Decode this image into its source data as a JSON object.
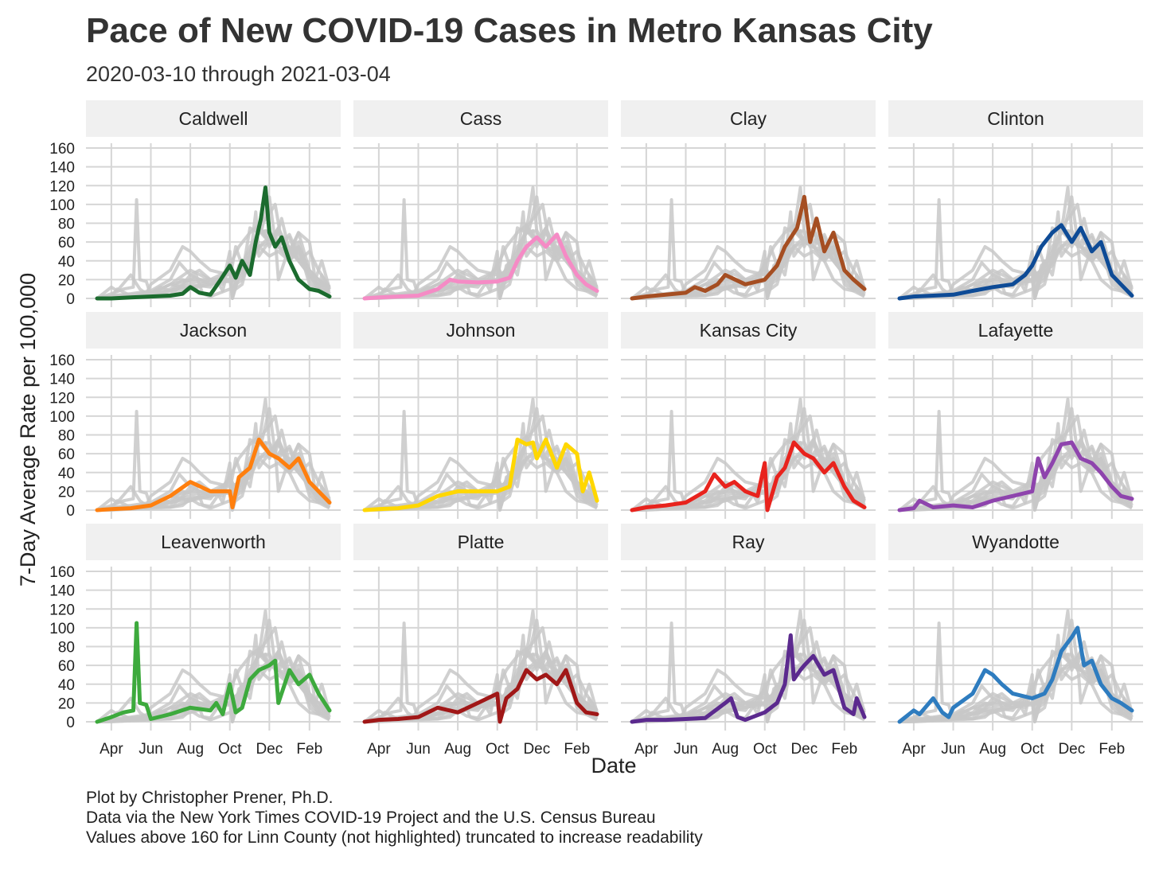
{
  "title": "Pace of New COVID-19 Cases in Metro Kansas City",
  "subtitle": "2020-03-10 through 2021-03-04",
  "caption": [
    "Plot by Christopher Prener, Ph.D.",
    "Data via the New York Times COVID-19 Project and the U.S. Census Bureau",
    "Values above 160 for Linn County (not highlighted) truncated to increase readability"
  ],
  "chart_data": {
    "type": "line",
    "xlabel": "Date",
    "ylabel": "7-Day Average Rate per 100,000",
    "xlim": [
      "2020-03-10",
      "2021-03-04"
    ],
    "ylim": [
      0,
      160
    ],
    "y_ticks": [
      0,
      20,
      40,
      60,
      80,
      100,
      120,
      140,
      160
    ],
    "x_ticks": [
      {
        "date": "2020-04-01",
        "label": "Apr"
      },
      {
        "date": "2020-06-01",
        "label": "Jun"
      },
      {
        "date": "2020-08-01",
        "label": "Aug"
      },
      {
        "date": "2020-10-01",
        "label": "Oct"
      },
      {
        "date": "2020-12-01",
        "label": "Dec"
      },
      {
        "date": "2021-02-01",
        "label": "Feb"
      }
    ],
    "grid": true,
    "background_series_color": "#c8c8c8",
    "panels": [
      {
        "name": "Caldwell",
        "color": "#1b6b2e",
        "x": [
          "2020-03-10",
          "2020-04-01",
          "2020-05-01",
          "2020-06-01",
          "2020-07-01",
          "2020-07-20",
          "2020-08-01",
          "2020-08-15",
          "2020-09-01",
          "2020-09-15",
          "2020-10-01",
          "2020-10-10",
          "2020-10-20",
          "2020-11-01",
          "2020-11-10",
          "2020-11-18",
          "2020-11-25",
          "2020-12-01",
          "2020-12-10",
          "2020-12-20",
          "2021-01-01",
          "2021-01-15",
          "2021-02-01",
          "2021-02-15",
          "2021-03-04"
        ],
        "values": [
          0,
          0,
          1,
          2,
          3,
          5,
          12,
          6,
          4,
          18,
          35,
          22,
          40,
          25,
          60,
          85,
          118,
          70,
          55,
          65,
          40,
          20,
          10,
          8,
          2
        ]
      },
      {
        "name": "Cass",
        "color": "#f58bc5",
        "x": [
          "2020-03-10",
          "2020-04-01",
          "2020-05-01",
          "2020-06-01",
          "2020-07-01",
          "2020-07-20",
          "2020-08-01",
          "2020-09-01",
          "2020-10-01",
          "2020-10-20",
          "2020-11-01",
          "2020-11-15",
          "2020-12-01",
          "2020-12-15",
          "2021-01-01",
          "2021-01-15",
          "2021-02-01",
          "2021-02-15",
          "2021-03-04"
        ],
        "values": [
          0,
          1,
          2,
          3,
          10,
          20,
          18,
          17,
          18,
          22,
          40,
          55,
          65,
          55,
          68,
          45,
          25,
          15,
          8
        ]
      },
      {
        "name": "Clay",
        "color": "#a54e22",
        "x": [
          "2020-03-10",
          "2020-04-01",
          "2020-05-01",
          "2020-06-01",
          "2020-06-15",
          "2020-07-01",
          "2020-07-20",
          "2020-08-01",
          "2020-09-01",
          "2020-10-01",
          "2020-10-20",
          "2020-11-01",
          "2020-11-20",
          "2020-12-01",
          "2020-12-10",
          "2020-12-20",
          "2021-01-01",
          "2021-01-15",
          "2021-02-01",
          "2021-02-15",
          "2021-03-04"
        ],
        "values": [
          0,
          2,
          4,
          6,
          12,
          8,
          15,
          25,
          15,
          20,
          35,
          55,
          75,
          108,
          60,
          85,
          50,
          70,
          30,
          20,
          10
        ]
      },
      {
        "name": "Clinton",
        "color": "#0e4b96",
        "x": [
          "2020-03-10",
          "2020-04-01",
          "2020-05-01",
          "2020-06-01",
          "2020-07-01",
          "2020-08-01",
          "2020-09-01",
          "2020-09-20",
          "2020-10-01",
          "2020-10-15",
          "2020-11-01",
          "2020-11-15",
          "2020-12-01",
          "2020-12-15",
          "2021-01-01",
          "2021-01-15",
          "2021-02-01",
          "2021-02-15",
          "2021-03-04"
        ],
        "values": [
          0,
          2,
          3,
          4,
          8,
          12,
          15,
          25,
          35,
          55,
          70,
          78,
          60,
          75,
          50,
          60,
          25,
          15,
          3
        ]
      },
      {
        "name": "Jackson",
        "color": "#ff7f0e",
        "x": [
          "2020-03-10",
          "2020-04-01",
          "2020-05-01",
          "2020-06-01",
          "2020-07-01",
          "2020-08-01",
          "2020-09-01",
          "2020-10-01",
          "2020-10-05",
          "2020-10-15",
          "2020-11-01",
          "2020-11-15",
          "2020-12-01",
          "2020-12-15",
          "2021-01-01",
          "2021-01-15",
          "2021-02-01",
          "2021-02-15",
          "2021-03-04"
        ],
        "values": [
          0,
          1,
          2,
          5,
          15,
          30,
          20,
          20,
          3,
          35,
          45,
          75,
          60,
          55,
          45,
          55,
          30,
          20,
          8
        ]
      },
      {
        "name": "Johnson",
        "color": "#ffd700",
        "x": [
          "2020-03-10",
          "2020-04-01",
          "2020-05-01",
          "2020-06-01",
          "2020-07-01",
          "2020-08-01",
          "2020-09-01",
          "2020-10-01",
          "2020-10-20",
          "2020-11-01",
          "2020-11-15",
          "2020-11-25",
          "2020-12-01",
          "2020-12-15",
          "2021-01-01",
          "2021-01-15",
          "2021-02-01",
          "2021-02-10",
          "2021-02-20",
          "2021-03-04"
        ],
        "values": [
          0,
          1,
          2,
          5,
          15,
          20,
          20,
          20,
          25,
          75,
          70,
          72,
          55,
          75,
          45,
          70,
          60,
          20,
          40,
          10
        ]
      },
      {
        "name": "Kansas City",
        "color": "#e8231d",
        "x": [
          "2020-03-10",
          "2020-04-01",
          "2020-05-01",
          "2020-06-01",
          "2020-07-01",
          "2020-07-15",
          "2020-08-01",
          "2020-08-15",
          "2020-09-01",
          "2020-09-20",
          "2020-10-01",
          "2020-10-05",
          "2020-10-20",
          "2020-11-01",
          "2020-11-15",
          "2020-12-01",
          "2020-12-15",
          "2021-01-01",
          "2021-01-15",
          "2021-02-01",
          "2021-02-15",
          "2021-03-04"
        ],
        "values": [
          0,
          3,
          5,
          8,
          20,
          38,
          25,
          30,
          20,
          15,
          50,
          0,
          35,
          45,
          72,
          60,
          55,
          40,
          50,
          25,
          10,
          3
        ]
      },
      {
        "name": "Lafayette",
        "color": "#8e44ad",
        "x": [
          "2020-03-10",
          "2020-04-01",
          "2020-04-10",
          "2020-05-01",
          "2020-06-01",
          "2020-07-01",
          "2020-08-01",
          "2020-09-01",
          "2020-10-01",
          "2020-10-10",
          "2020-10-20",
          "2020-11-01",
          "2020-11-15",
          "2020-12-01",
          "2020-12-15",
          "2021-01-01",
          "2021-01-15",
          "2021-02-01",
          "2021-02-15",
          "2021-03-04"
        ],
        "values": [
          0,
          2,
          10,
          3,
          5,
          3,
          10,
          15,
          20,
          55,
          35,
          50,
          70,
          72,
          55,
          50,
          40,
          25,
          15,
          12
        ]
      },
      {
        "name": "Leavenworth",
        "color": "#3daa3d",
        "x": [
          "2020-03-10",
          "2020-04-01",
          "2020-04-20",
          "2020-05-05",
          "2020-05-10",
          "2020-05-15",
          "2020-05-25",
          "2020-06-01",
          "2020-07-01",
          "2020-08-01",
          "2020-09-01",
          "2020-09-10",
          "2020-09-20",
          "2020-10-01",
          "2020-10-10",
          "2020-10-20",
          "2020-11-01",
          "2020-11-15",
          "2020-12-01",
          "2020-12-10",
          "2020-12-15",
          "2021-01-01",
          "2021-01-15",
          "2021-02-01",
          "2021-02-15",
          "2021-03-04"
        ],
        "values": [
          0,
          5,
          10,
          12,
          105,
          20,
          18,
          3,
          8,
          15,
          12,
          20,
          8,
          40,
          10,
          15,
          45,
          55,
          60,
          65,
          20,
          55,
          40,
          50,
          30,
          12
        ]
      },
      {
        "name": "Platte",
        "color": "#a01717",
        "x": [
          "2020-03-10",
          "2020-04-01",
          "2020-05-01",
          "2020-06-01",
          "2020-07-01",
          "2020-08-01",
          "2020-09-01",
          "2020-10-01",
          "2020-10-05",
          "2020-10-15",
          "2020-11-01",
          "2020-11-15",
          "2020-12-01",
          "2020-12-15",
          "2021-01-01",
          "2021-01-15",
          "2021-02-01",
          "2021-02-15",
          "2021-03-04"
        ],
        "values": [
          0,
          2,
          3,
          5,
          15,
          10,
          20,
          30,
          0,
          25,
          35,
          55,
          45,
          50,
          40,
          55,
          20,
          10,
          8
        ]
      },
      {
        "name": "Ray",
        "color": "#5b2a8e",
        "x": [
          "2020-03-10",
          "2020-04-01",
          "2020-05-01",
          "2020-06-01",
          "2020-07-01",
          "2020-08-01",
          "2020-08-10",
          "2020-08-20",
          "2020-09-01",
          "2020-10-01",
          "2020-10-20",
          "2020-11-01",
          "2020-11-10",
          "2020-11-15",
          "2020-11-25",
          "2020-12-01",
          "2020-12-15",
          "2021-01-01",
          "2021-01-15",
          "2021-02-01",
          "2021-02-15",
          "2021-02-20",
          "2021-03-04"
        ],
        "values": [
          0,
          2,
          2,
          3,
          4,
          20,
          25,
          5,
          2,
          10,
          20,
          40,
          92,
          45,
          55,
          60,
          70,
          50,
          55,
          15,
          8,
          25,
          5
        ]
      },
      {
        "name": "Wyandotte",
        "color": "#2e7cbf",
        "x": [
          "2020-03-10",
          "2020-04-01",
          "2020-04-10",
          "2020-05-01",
          "2020-05-15",
          "2020-05-25",
          "2020-06-01",
          "2020-07-01",
          "2020-07-20",
          "2020-08-01",
          "2020-08-15",
          "2020-09-01",
          "2020-10-01",
          "2020-10-20",
          "2020-11-01",
          "2020-11-15",
          "2020-12-01",
          "2020-12-10",
          "2020-12-20",
          "2021-01-01",
          "2021-01-15",
          "2021-02-01",
          "2021-02-15",
          "2021-03-04"
        ],
        "values": [
          0,
          12,
          8,
          25,
          10,
          5,
          15,
          30,
          55,
          50,
          40,
          30,
          25,
          30,
          45,
          75,
          90,
          100,
          60,
          65,
          40,
          25,
          20,
          12
        ]
      }
    ]
  }
}
